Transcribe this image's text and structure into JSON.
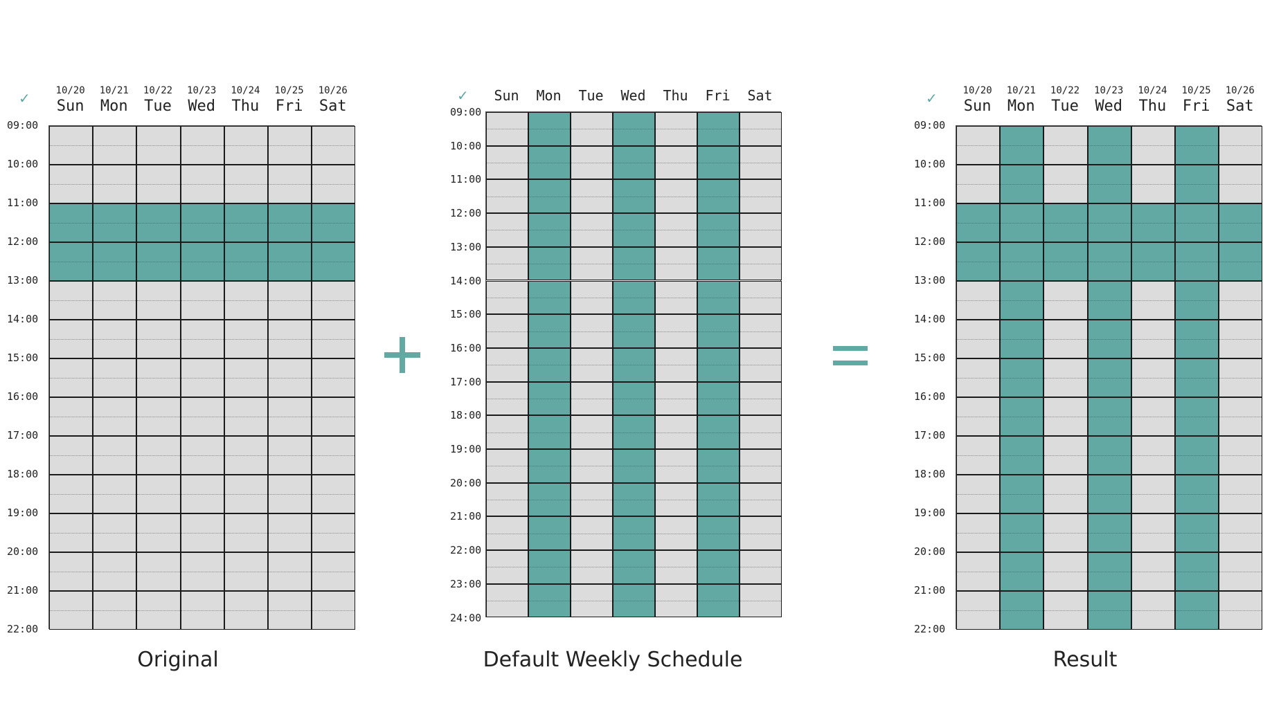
{
  "colors": {
    "available": "#62a8a3",
    "empty": "#dcdcdc",
    "line": "#1a1a1a",
    "subline": "#8a8a8a"
  },
  "panels": [
    {
      "id": "original",
      "check_icon": "check-icon",
      "caption": "Original",
      "days": [
        {
          "date": "10/20",
          "dow": "Sun"
        },
        {
          "date": "10/21",
          "dow": "Mon"
        },
        {
          "date": "10/22",
          "dow": "Tue"
        },
        {
          "date": "10/23",
          "dow": "Wed"
        },
        {
          "date": "10/24",
          "dow": "Thu"
        },
        {
          "date": "10/25",
          "dow": "Fri"
        },
        {
          "date": "10/26",
          "dow": "Sat"
        }
      ],
      "times": [
        "09:00",
        "10:00",
        "11:00",
        "12:00",
        "13:00",
        "14:00",
        "15:00",
        "16:00",
        "17:00",
        "18:00",
        "19:00",
        "20:00",
        "21:00",
        "22:00"
      ],
      "available": [
        [
          false,
          false,
          true,
          true,
          false,
          false,
          false,
          false,
          false,
          false,
          false,
          false,
          false
        ],
        [
          false,
          false,
          true,
          true,
          false,
          false,
          false,
          false,
          false,
          false,
          false,
          false,
          false
        ],
        [
          false,
          false,
          true,
          true,
          false,
          false,
          false,
          false,
          false,
          false,
          false,
          false,
          false
        ],
        [
          false,
          false,
          true,
          true,
          false,
          false,
          false,
          false,
          false,
          false,
          false,
          false,
          false
        ],
        [
          false,
          false,
          true,
          true,
          false,
          false,
          false,
          false,
          false,
          false,
          false,
          false,
          false
        ],
        [
          false,
          false,
          true,
          true,
          false,
          false,
          false,
          false,
          false,
          false,
          false,
          false,
          false
        ],
        [
          false,
          false,
          true,
          true,
          false,
          false,
          false,
          false,
          false,
          false,
          false,
          false,
          false
        ]
      ]
    },
    {
      "id": "default",
      "check_icon": "check-icon",
      "caption": "Default Weekly Schedule",
      "days": [
        {
          "dow": "Sun"
        },
        {
          "dow": "Mon"
        },
        {
          "dow": "Tue"
        },
        {
          "dow": "Wed"
        },
        {
          "dow": "Thu"
        },
        {
          "dow": "Fri"
        },
        {
          "dow": "Sat"
        }
      ],
      "times": [
        "09:00",
        "10:00",
        "11:00",
        "12:00",
        "13:00",
        "14:00",
        "15:00",
        "16:00",
        "17:00",
        "18:00",
        "19:00",
        "20:00",
        "21:00",
        "22:00",
        "23:00",
        "24:00"
      ],
      "available_days": [
        false,
        true,
        false,
        true,
        false,
        true,
        false
      ]
    },
    {
      "id": "result",
      "check_icon": "check-icon",
      "caption": "Result",
      "days": [
        {
          "date": "10/20",
          "dow": "Sun"
        },
        {
          "date": "10/21",
          "dow": "Mon"
        },
        {
          "date": "10/22",
          "dow": "Tue"
        },
        {
          "date": "10/23",
          "dow": "Wed"
        },
        {
          "date": "10/24",
          "dow": "Thu"
        },
        {
          "date": "10/25",
          "dow": "Fri"
        },
        {
          "date": "10/26",
          "dow": "Sat"
        }
      ],
      "times": [
        "09:00",
        "10:00",
        "11:00",
        "12:00",
        "13:00",
        "14:00",
        "15:00",
        "16:00",
        "17:00",
        "18:00",
        "19:00",
        "20:00",
        "21:00",
        "22:00"
      ],
      "available": [
        [
          false,
          false,
          true,
          true,
          false,
          false,
          false,
          false,
          false,
          false,
          false,
          false,
          false
        ],
        [
          true,
          true,
          true,
          true,
          true,
          true,
          true,
          true,
          true,
          true,
          true,
          true,
          true
        ],
        [
          false,
          false,
          true,
          true,
          false,
          false,
          false,
          false,
          false,
          false,
          false,
          false,
          false
        ],
        [
          true,
          true,
          true,
          true,
          true,
          true,
          true,
          true,
          true,
          true,
          true,
          true,
          true
        ],
        [
          false,
          false,
          true,
          true,
          false,
          false,
          false,
          false,
          false,
          false,
          false,
          false,
          false
        ],
        [
          true,
          true,
          true,
          true,
          true,
          true,
          true,
          true,
          true,
          true,
          true,
          true,
          true
        ],
        [
          false,
          false,
          true,
          true,
          false,
          false,
          false,
          false,
          false,
          false,
          false,
          false,
          false
        ]
      ]
    }
  ],
  "operators": {
    "plus": "plus-icon",
    "equals": "equals-icon"
  }
}
